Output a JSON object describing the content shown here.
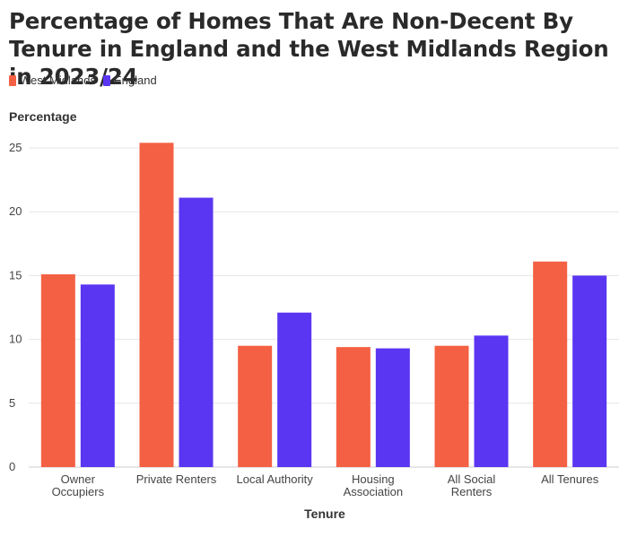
{
  "chart_data": {
    "type": "bar",
    "title": "Percentage of Homes That Are Non-Decent By Tenure in England and the West Midlands Region in 2023/24",
    "xlabel": "Tenure",
    "ylabel": "Percentage",
    "ylim": [
      0,
      26
    ],
    "yticks": [
      0,
      5,
      10,
      15,
      20,
      25
    ],
    "grid": true,
    "legend_position": "top-left",
    "categories": [
      [
        "Owner",
        "Occupiers"
      ],
      [
        "Private Renters"
      ],
      [
        "Local Authority"
      ],
      [
        "Housing",
        "Association"
      ],
      [
        "All Social",
        "Renters"
      ],
      [
        "All Tenures"
      ]
    ],
    "series": [
      {
        "name": "West Midlands",
        "color": "#f46043",
        "values": [
          15.1,
          25.4,
          9.5,
          9.4,
          9.5,
          16.1
        ]
      },
      {
        "name": "England",
        "color": "#5a35f2",
        "values": [
          14.3,
          21.1,
          12.1,
          9.3,
          10.3,
          15.0
        ]
      }
    ]
  }
}
